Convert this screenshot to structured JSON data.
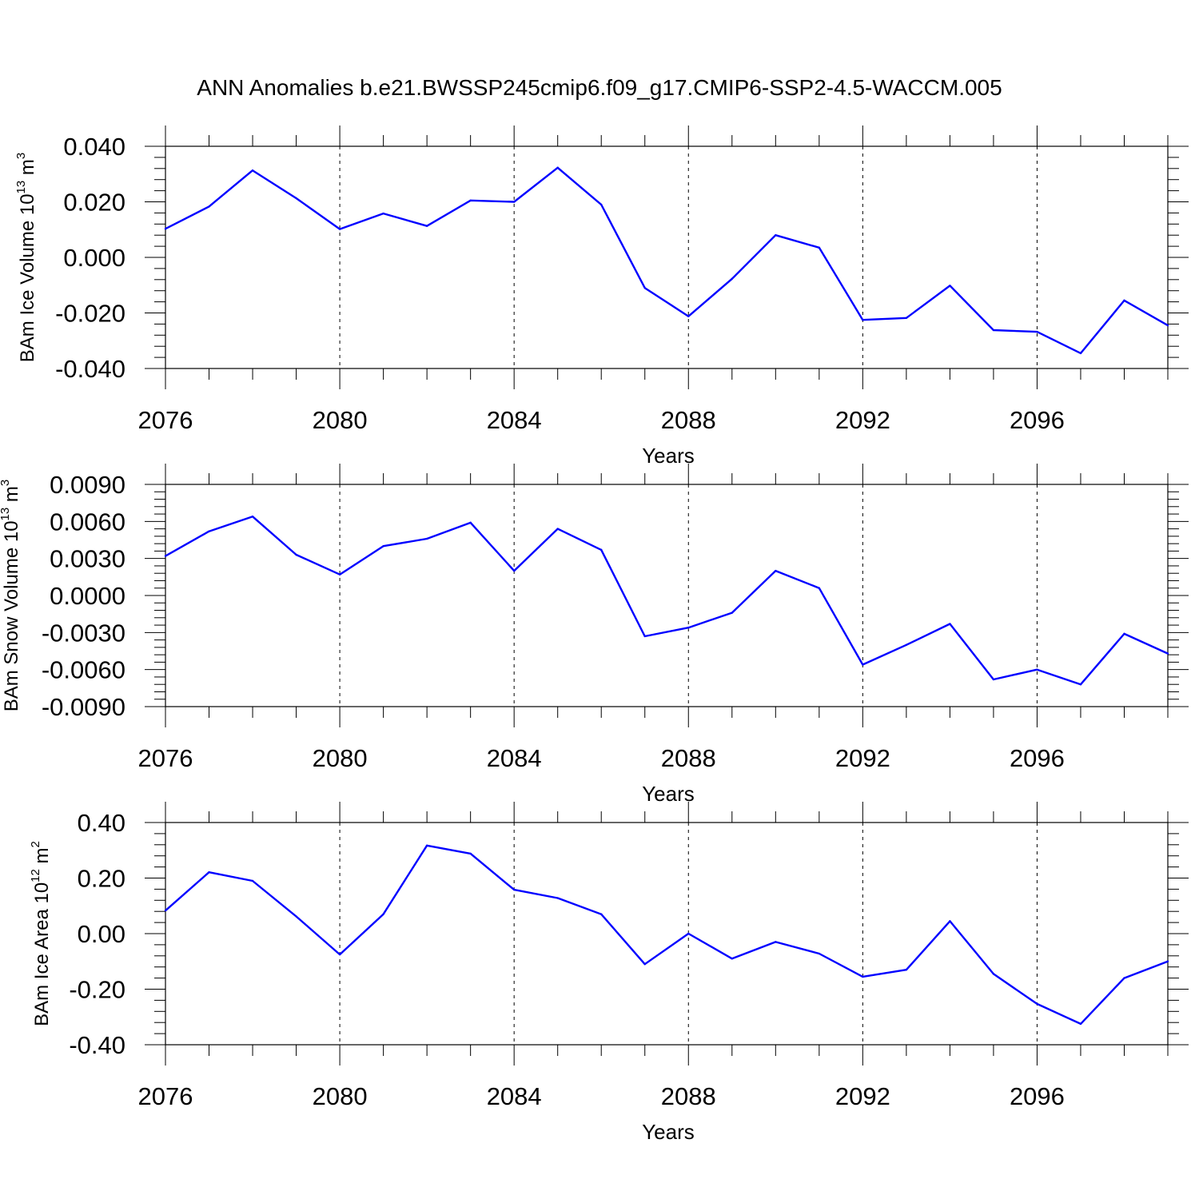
{
  "chart_data": {
    "title": "ANN Anomalies b.e21.BWSSP245cmip6.f09_g17.CMIP6-SSP2-4.5-WACCM.005",
    "type": "line",
    "line_color": "#0000ff",
    "x": [
      2076,
      2077,
      2078,
      2079,
      2080,
      2081,
      2082,
      2083,
      2084,
      2085,
      2086,
      2087,
      2088,
      2089,
      2090,
      2091,
      2092,
      2093,
      2094,
      2095,
      2096,
      2097,
      2098,
      2099
    ],
    "xlim": [
      2076,
      2099
    ],
    "xticks": [
      "2076",
      "2080",
      "2084",
      "2088",
      "2092",
      "2096"
    ],
    "panels": [
      {
        "ylabel": "BAm Ice Volume 10",
        "ylabel_exp": "13",
        "ylabel_unit": "m",
        "ylabel_unit_exp": "3",
        "xlabel": "Years",
        "ylim": [
          -0.04,
          0.04
        ],
        "yticks": [
          0.04,
          0.02,
          0.0,
          -0.02,
          -0.04
        ],
        "yticklabels": [
          "0.040",
          "0.020",
          "0.000",
          "-0.020",
          "-0.040"
        ],
        "values": [
          0.0103,
          0.0183,
          0.0313,
          0.0213,
          0.0102,
          0.0158,
          0.0113,
          0.0205,
          0.02,
          0.0323,
          0.019,
          -0.011,
          -0.0212,
          -0.0077,
          0.008,
          0.0035,
          -0.0225,
          -0.0218,
          -0.0102,
          -0.0262,
          -0.0268,
          -0.0345,
          -0.0155,
          -0.0245
        ]
      },
      {
        "ylabel": "BAm Snow Volume 10",
        "ylabel_exp": "13",
        "ylabel_unit": "m",
        "ylabel_unit_exp": "3",
        "xlabel": "Years",
        "ylim": [
          -0.009,
          0.009
        ],
        "yticks": [
          0.009,
          0.006,
          0.003,
          0.0,
          -0.003,
          -0.006,
          -0.009
        ],
        "yticklabels": [
          "0.0090",
          "0.0060",
          "0.0030",
          "0.0000",
          "-0.0030",
          "-0.0060",
          "-0.0090"
        ],
        "values": [
          0.0032,
          0.0052,
          0.0064,
          0.0033,
          0.0017,
          0.004,
          0.0046,
          0.0059,
          0.002,
          0.0054,
          0.0037,
          -0.0033,
          -0.0026,
          -0.0014,
          0.002,
          0.0006,
          -0.0056,
          -0.004,
          -0.0023,
          -0.0068,
          -0.006,
          -0.0072,
          -0.0031,
          -0.0047
        ]
      },
      {
        "ylabel": "BAm Ice Area 10",
        "ylabel_exp": "12",
        "ylabel_unit": "m",
        "ylabel_unit_exp": "2",
        "xlabel": "Years",
        "ylim": [
          -0.4,
          0.4
        ],
        "yticks": [
          0.4,
          0.2,
          0.0,
          -0.2,
          -0.4
        ],
        "yticklabels": [
          "0.40",
          "0.20",
          "0.00",
          "-0.20",
          "-0.40"
        ],
        "values": [
          0.083,
          0.221,
          0.19,
          0.062,
          -0.075,
          0.07,
          0.317,
          0.288,
          0.158,
          0.128,
          0.07,
          -0.11,
          0.0,
          -0.09,
          -0.03,
          -0.072,
          -0.155,
          -0.13,
          0.045,
          -0.145,
          -0.253,
          -0.325,
          -0.16,
          -0.1
        ]
      }
    ]
  }
}
